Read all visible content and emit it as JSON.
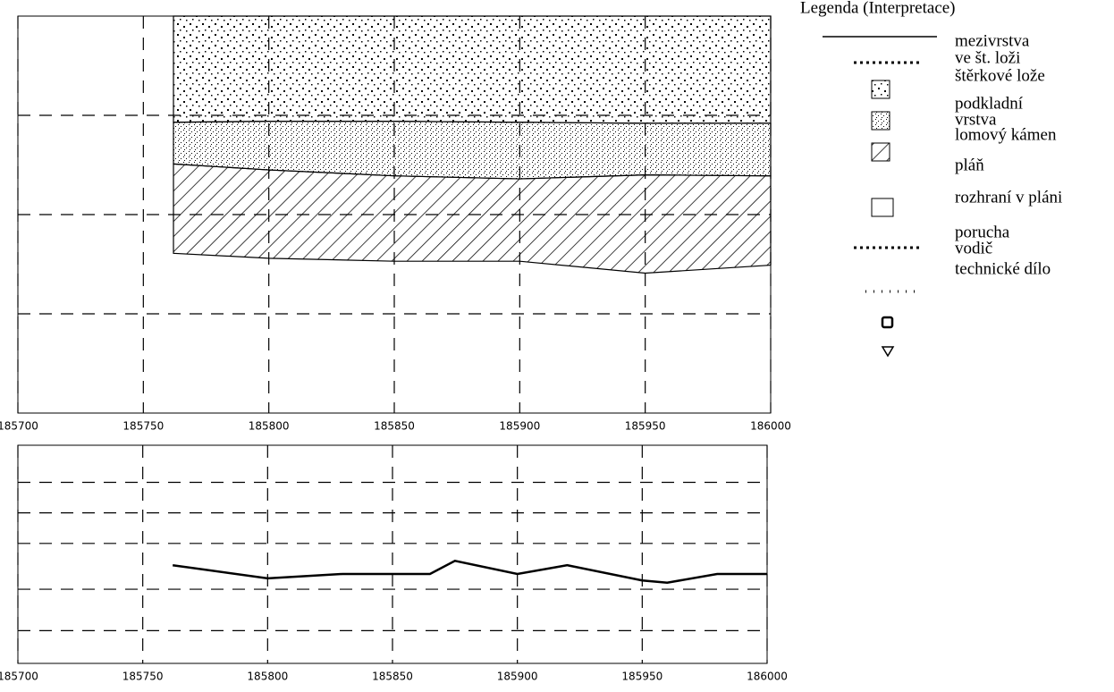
{
  "chart_data": [
    {
      "type": "layers",
      "x": [
        185762,
        185800,
        185850,
        185900,
        185950,
        186000
      ],
      "layers": [
        {
          "fill": "dots",
          "values": [
            2.93,
            2.94,
            2.94,
            2.93,
            2.92,
            2.92
          ]
        },
        {
          "fill": "stipple",
          "values": [
            2.51,
            2.45,
            2.39,
            2.36,
            2.4,
            2.39
          ]
        },
        {
          "fill": "hatch",
          "values": [
            1.61,
            1.56,
            1.53,
            1.53,
            1.41,
            1.49
          ]
        }
      ],
      "xlim": [
        185700,
        186000
      ],
      "xticks": [
        185700,
        185750,
        185800,
        185850,
        185900,
        185950,
        186000
      ],
      "ylim": [
        0,
        4
      ],
      "yticks": [
        1,
        2,
        3
      ],
      "grid": true
    },
    {
      "type": "line",
      "x": [
        185762,
        185800,
        185830,
        185850,
        185865,
        185875,
        185900,
        185920,
        185950,
        185960,
        185980,
        186000
      ],
      "values": [
        0.45,
        0.39,
        0.41,
        0.41,
        0.41,
        0.47,
        0.41,
        0.45,
        0.38,
        0.37,
        0.41,
        0.41
      ],
      "color": "#000000",
      "xlim": [
        185700,
        186000
      ],
      "xticks": [
        185700,
        185750,
        185800,
        185850,
        185900,
        185950,
        186000
      ],
      "ylim": [
        0,
        1
      ],
      "yticks": [
        0.15,
        0.34,
        0.55,
        0.69,
        0.83
      ],
      "grid": true
    }
  ],
  "legend": {
    "title": "Legenda (Interpretace)",
    "items": [
      "mezivrstva",
      "ve št. loži",
      "štěrkové lože",
      "podkladní",
      "vrstva",
      "lomový kámen",
      "pláň",
      "rozhraní v pláni",
      "porucha",
      "vodič",
      "technické dílo"
    ]
  }
}
